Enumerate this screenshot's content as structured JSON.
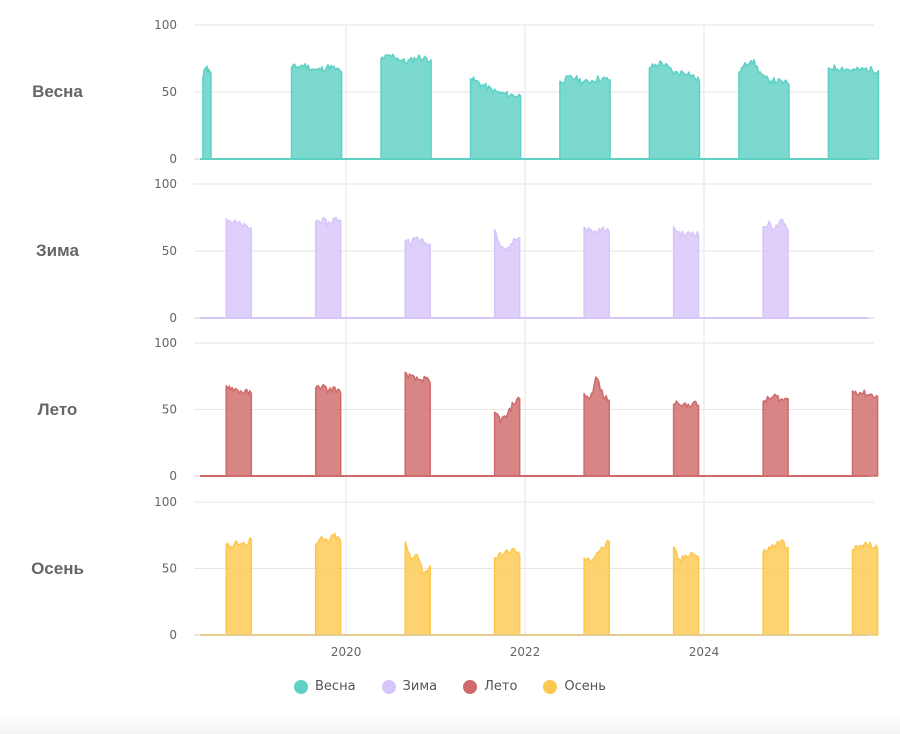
{
  "chart_data": {
    "type": "area",
    "layout": "small-multiples",
    "ylim": [
      0,
      100
    ],
    "yticks": [
      0,
      50,
      100
    ],
    "x_range": [
      2018.3,
      2025.9
    ],
    "xticks": [
      "2020",
      "2022",
      "2024"
    ],
    "xtick_values": [
      2020,
      2022,
      2024
    ],
    "series": [
      {
        "name": "Весна",
        "label": "Весна",
        "color": "#5ED1C4",
        "blocks": [
          {
            "start": 2018.4,
            "end": 2018.49,
            "values": [
              60,
              70,
              66,
              64
            ]
          },
          {
            "start": 2019.39,
            "end": 2019.95,
            "values": [
              68,
              70,
              66,
              69,
              65
            ]
          },
          {
            "start": 2020.39,
            "end": 2020.95,
            "values": [
              75,
              77,
              72,
              76,
              74
            ]
          },
          {
            "start": 2021.39,
            "end": 2021.95,
            "values": [
              60,
              55,
              50,
              48,
              47
            ]
          },
          {
            "start": 2022.39,
            "end": 2022.95,
            "values": [
              58,
              61,
              57,
              60,
              59
            ]
          },
          {
            "start": 2023.39,
            "end": 2023.95,
            "values": [
              68,
              72,
              64,
              65,
              58
            ]
          },
          {
            "start": 2024.39,
            "end": 2024.95,
            "values": [
              65,
              75,
              60,
              58,
              56
            ]
          },
          {
            "start": 2025.39,
            "end": 2025.95,
            "values": [
              68,
              68,
              66,
              67,
              66
            ]
          }
        ]
      },
      {
        "name": "Зима",
        "label": "Зима",
        "color": "#D7C6FA",
        "blocks": [
          {
            "start": 2018.66,
            "end": 2018.94,
            "values": [
              74,
              72,
              70,
              68,
              67
            ]
          },
          {
            "start": 2019.66,
            "end": 2019.94,
            "values": [
              72,
              73,
              70,
              74,
              73
            ]
          },
          {
            "start": 2020.66,
            "end": 2020.94,
            "values": [
              58,
              57,
              60,
              56,
              55
            ]
          },
          {
            "start": 2021.66,
            "end": 2021.94,
            "values": [
              66,
              55,
              50,
              58,
              60
            ]
          },
          {
            "start": 2022.66,
            "end": 2022.94,
            "values": [
              68,
              65,
              64,
              66,
              64
            ]
          },
          {
            "start": 2023.66,
            "end": 2023.94,
            "values": [
              68,
              63,
              62,
              64,
              62
            ]
          },
          {
            "start": 2024.66,
            "end": 2024.94,
            "values": [
              68,
              70,
              67,
              72,
              66
            ]
          }
        ]
      },
      {
        "name": "Лето",
        "label": "Лето",
        "color": "#D06A6A",
        "blocks": [
          {
            "start": 2018.66,
            "end": 2018.94,
            "values": [
              68,
              66,
              64,
              63,
              62
            ]
          },
          {
            "start": 2019.66,
            "end": 2019.94,
            "values": [
              66,
              68,
              64,
              66,
              62
            ]
          },
          {
            "start": 2020.66,
            "end": 2020.94,
            "values": [
              78,
              74,
              72,
              73,
              70
            ]
          },
          {
            "start": 2021.66,
            "end": 2021.94,
            "values": [
              48,
              42,
              45,
              55,
              58
            ]
          },
          {
            "start": 2022.66,
            "end": 2022.94,
            "values": [
              62,
              58,
              75,
              60,
              57
            ]
          },
          {
            "start": 2023.66,
            "end": 2023.94,
            "values": [
              54,
              56,
              52,
              55,
              53
            ]
          },
          {
            "start": 2024.66,
            "end": 2024.94,
            "values": [
              56,
              58,
              60,
              57,
              58
            ]
          },
          {
            "start": 2025.66,
            "end": 2025.94,
            "values": [
              64,
              63,
              62,
              61,
              60
            ]
          }
        ]
      },
      {
        "name": "Осень",
        "label": "Осень",
        "color": "#FDC84F",
        "blocks": [
          {
            "start": 2018.66,
            "end": 2018.94,
            "values": [
              68,
              66,
              70,
              68,
              72
            ]
          },
          {
            "start": 2019.66,
            "end": 2019.94,
            "values": [
              68,
              72,
              70,
              75,
              70
            ]
          },
          {
            "start": 2020.66,
            "end": 2020.94,
            "values": [
              70,
              55,
              62,
              45,
              52
            ]
          },
          {
            "start": 2021.66,
            "end": 2021.94,
            "values": [
              58,
              60,
              62,
              64,
              60
            ]
          },
          {
            "start": 2022.66,
            "end": 2022.94,
            "values": [
              58,
              55,
              62,
              65,
              70
            ]
          },
          {
            "start": 2023.66,
            "end": 2023.94,
            "values": [
              66,
              55,
              60,
              62,
              58
            ]
          },
          {
            "start": 2024.66,
            "end": 2024.94,
            "values": [
              62,
              65,
              68,
              70,
              66
            ]
          },
          {
            "start": 2025.66,
            "end": 2025.94,
            "values": [
              64,
              66,
              68,
              67,
              65
            ]
          }
        ]
      }
    ]
  }
}
